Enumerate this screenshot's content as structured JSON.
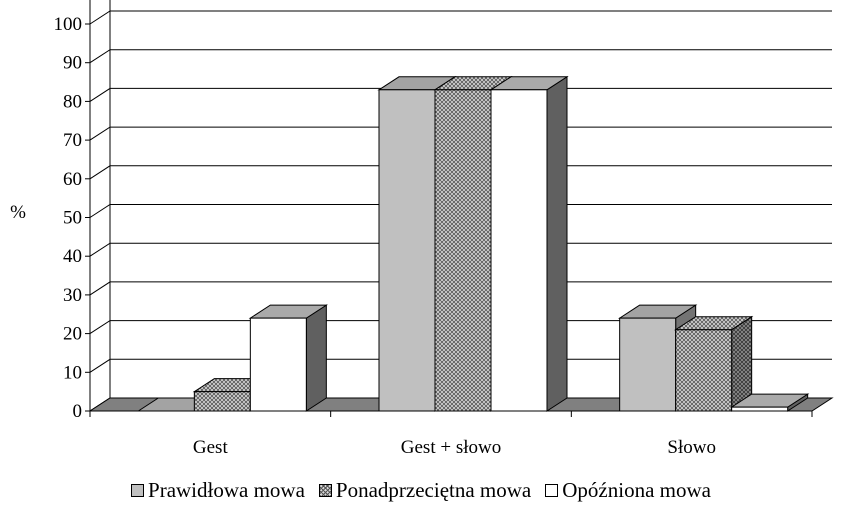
{
  "chart_data": {
    "type": "bar",
    "style": "3d-clustered",
    "categories": [
      "Gest",
      "Gest + słowo",
      "Słowo"
    ],
    "series": [
      {
        "name": "Prawidłowa mowa",
        "values": [
          0,
          83,
          24
        ],
        "color": "#c0c0c0",
        "pattern": "solid"
      },
      {
        "name": "Ponadprzeciętna mowa",
        "values": [
          5,
          83,
          21
        ],
        "color": "#a0a0a0",
        "pattern": "crosshatch"
      },
      {
        "name": "Opóźniona mowa",
        "values": [
          24,
          83,
          1
        ],
        "color": "#ffffff",
        "pattern": "solid"
      }
    ],
    "ylabel": "%",
    "ylim": [
      0,
      100
    ],
    "yticks": [
      "0",
      "10",
      "20",
      "30",
      "40",
      "50",
      "60",
      "70",
      "80",
      "90",
      "100"
    ],
    "grid": true,
    "legend_position": "bottom"
  }
}
